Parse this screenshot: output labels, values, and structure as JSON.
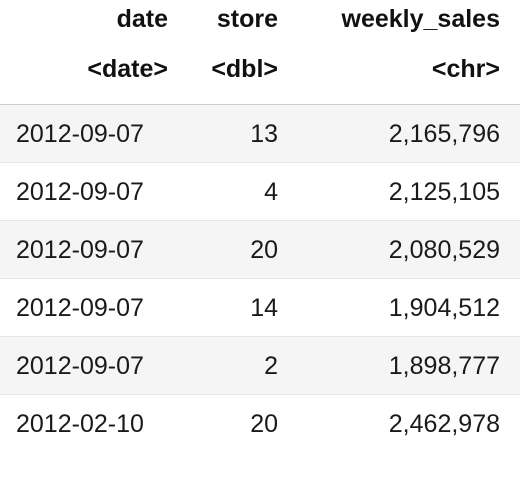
{
  "table": {
    "columns": [
      {
        "name": "date",
        "type": "<date>"
      },
      {
        "name": "store",
        "type": "<dbl>"
      },
      {
        "name": "weekly_sales",
        "type": "<chr>"
      }
    ],
    "rows": [
      {
        "date": "2012-09-07",
        "store": "13",
        "weekly_sales": "2,165,796"
      },
      {
        "date": "2012-09-07",
        "store": "4",
        "weekly_sales": "2,125,105"
      },
      {
        "date": "2012-09-07",
        "store": "20",
        "weekly_sales": "2,080,529"
      },
      {
        "date": "2012-09-07",
        "store": "14",
        "weekly_sales": "1,904,512"
      },
      {
        "date": "2012-09-07",
        "store": "2",
        "weekly_sales": "1,898,777"
      },
      {
        "date": "2012-02-10",
        "store": "20",
        "weekly_sales": "2,462,978"
      }
    ]
  }
}
